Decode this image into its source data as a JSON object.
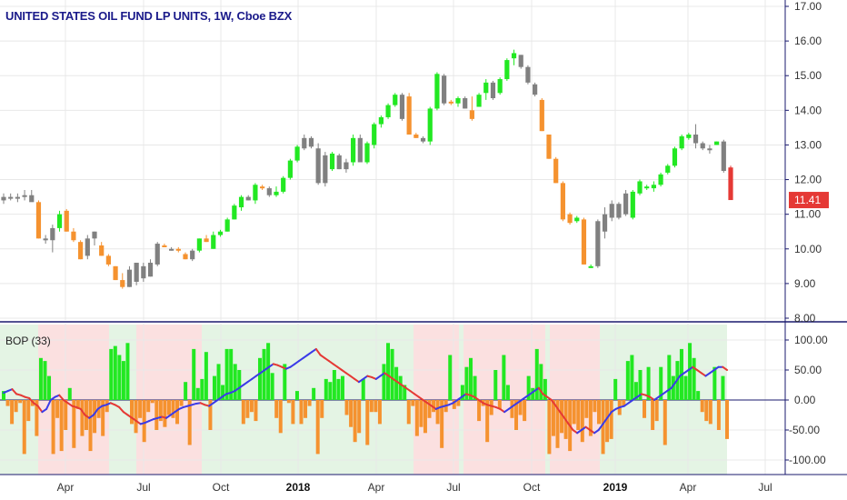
{
  "header": {
    "title": "UNITED STATES OIL FUND LP UNITS, 1W, Cboe BZX"
  },
  "indicator": {
    "label": "BOP (33)"
  },
  "chart_data": [
    {
      "type": "candlestick",
      "title": "UNITED STATES OIL FUND LP UNITS, 1W, Cboe BZX",
      "yticks": [
        "17.00",
        "16.00",
        "15.00",
        "14.00",
        "13.00",
        "12.00",
        "11.00",
        "10.00",
        "9.00",
        "8.00"
      ],
      "ylim": [
        8,
        17
      ],
      "last_price": "11.41",
      "last_price_color": "#e53935",
      "colors": {
        "up_strong": "#22e822",
        "down_strong": "#f5922f",
        "neutral": "#808080",
        "last": "#e53935"
      },
      "candles": [
        {
          "o": 11.4,
          "h": 11.6,
          "l": 11.3,
          "c": 11.5,
          "col": "gray"
        },
        {
          "o": 11.5,
          "h": 11.6,
          "l": 11.4,
          "c": 11.45,
          "col": "gray"
        },
        {
          "o": 11.45,
          "h": 11.6,
          "l": 11.35,
          "c": 11.5,
          "col": "gray"
        },
        {
          "o": 11.5,
          "h": 11.7,
          "l": 11.4,
          "c": 11.55,
          "col": "gray"
        },
        {
          "o": 11.55,
          "h": 11.7,
          "l": 11.4,
          "c": 11.35,
          "col": "gray"
        },
        {
          "o": 11.35,
          "h": 11.4,
          "l": 10.3,
          "c": 10.3,
          "col": "orange"
        },
        {
          "o": 10.3,
          "h": 10.4,
          "l": 10.15,
          "c": 10.25,
          "col": "gray"
        },
        {
          "o": 10.25,
          "h": 10.7,
          "l": 9.9,
          "c": 10.6,
          "col": "gray"
        },
        {
          "o": 10.6,
          "h": 11.1,
          "l": 10.5,
          "c": 11.0,
          "col": "green"
        },
        {
          "o": 11.1,
          "h": 11.15,
          "l": 10.5,
          "c": 10.5,
          "col": "orange"
        },
        {
          "o": 10.5,
          "h": 10.6,
          "l": 10.2,
          "c": 10.25,
          "col": "orange"
        },
        {
          "o": 10.2,
          "h": 10.25,
          "l": 9.7,
          "c": 9.7,
          "col": "orange"
        },
        {
          "o": 9.8,
          "h": 10.4,
          "l": 9.7,
          "c": 10.3,
          "col": "gray"
        },
        {
          "o": 10.3,
          "h": 10.5,
          "l": 10.1,
          "c": 10.5,
          "col": "gray"
        },
        {
          "o": 10.1,
          "h": 10.2,
          "l": 9.8,
          "c": 9.8,
          "col": "orange"
        },
        {
          "o": 9.8,
          "h": 9.85,
          "l": 9.5,
          "c": 9.55,
          "col": "orange"
        },
        {
          "o": 9.5,
          "h": 9.5,
          "l": 9.1,
          "c": 9.1,
          "col": "orange"
        },
        {
          "o": 9.1,
          "h": 9.3,
          "l": 8.85,
          "c": 8.9,
          "col": "orange"
        },
        {
          "o": 8.9,
          "h": 9.5,
          "l": 8.9,
          "c": 9.4,
          "col": "gray"
        },
        {
          "o": 9.05,
          "h": 9.6,
          "l": 8.95,
          "c": 9.6,
          "col": "gray"
        },
        {
          "o": 9.5,
          "h": 9.6,
          "l": 9.05,
          "c": 9.15,
          "col": "gray"
        },
        {
          "o": 9.2,
          "h": 9.7,
          "l": 9.2,
          "c": 9.6,
          "col": "gray"
        },
        {
          "o": 9.55,
          "h": 10.2,
          "l": 9.5,
          "c": 10.15,
          "col": "gray"
        },
        {
          "o": 10.1,
          "h": 10.15,
          "l": 10.05,
          "c": 10.1,
          "col": "orange"
        },
        {
          "o": 10.0,
          "h": 10.05,
          "l": 9.95,
          "c": 10.0,
          "col": "gray"
        },
        {
          "o": 10.0,
          "h": 10.05,
          "l": 9.9,
          "c": 9.95,
          "col": "orange"
        },
        {
          "o": 9.85,
          "h": 9.9,
          "l": 9.7,
          "c": 9.7,
          "col": "orange"
        },
        {
          "o": 9.7,
          "h": 10.0,
          "l": 9.65,
          "c": 9.95,
          "col": "gray"
        },
        {
          "o": 9.95,
          "h": 10.3,
          "l": 9.9,
          "c": 10.3,
          "col": "green"
        },
        {
          "o": 10.3,
          "h": 10.4,
          "l": 10.2,
          "c": 10.2,
          "col": "orange"
        },
        {
          "o": 10.0,
          "h": 10.5,
          "l": 10.0,
          "c": 10.4,
          "col": "green"
        },
        {
          "o": 10.4,
          "h": 10.55,
          "l": 10.35,
          "c": 10.5,
          "col": "green"
        },
        {
          "o": 10.5,
          "h": 10.9,
          "l": 10.5,
          "c": 10.85,
          "col": "green"
        },
        {
          "o": 10.85,
          "h": 11.3,
          "l": 10.85,
          "c": 11.25,
          "col": "green"
        },
        {
          "o": 11.2,
          "h": 11.55,
          "l": 11.1,
          "c": 11.5,
          "col": "green"
        },
        {
          "o": 11.5,
          "h": 11.55,
          "l": 11.4,
          "c": 11.4,
          "col": "gray"
        },
        {
          "o": 11.4,
          "h": 11.9,
          "l": 11.3,
          "c": 11.85,
          "col": "green"
        },
        {
          "o": 11.8,
          "h": 11.85,
          "l": 11.7,
          "c": 11.75,
          "col": "orange"
        },
        {
          "o": 11.75,
          "h": 11.8,
          "l": 11.5,
          "c": 11.55,
          "col": "gray"
        },
        {
          "o": 11.55,
          "h": 11.8,
          "l": 11.5,
          "c": 11.65,
          "col": "green"
        },
        {
          "o": 11.65,
          "h": 12.1,
          "l": 11.6,
          "c": 12.05,
          "col": "green"
        },
        {
          "o": 12.05,
          "h": 12.6,
          "l": 12.0,
          "c": 12.55,
          "col": "green"
        },
        {
          "o": 12.55,
          "h": 13.0,
          "l": 12.5,
          "c": 12.95,
          "col": "green"
        },
        {
          "o": 12.9,
          "h": 13.3,
          "l": 12.85,
          "c": 13.2,
          "col": "gray"
        },
        {
          "o": 13.2,
          "h": 13.25,
          "l": 12.9,
          "c": 12.95,
          "col": "gray"
        },
        {
          "o": 12.9,
          "h": 13.05,
          "l": 11.85,
          "c": 11.9,
          "col": "gray"
        },
        {
          "o": 11.9,
          "h": 12.8,
          "l": 11.8,
          "c": 12.7,
          "col": "gray"
        },
        {
          "o": 12.3,
          "h": 12.8,
          "l": 12.25,
          "c": 12.75,
          "col": "green"
        },
        {
          "o": 12.7,
          "h": 12.75,
          "l": 12.3,
          "c": 12.3,
          "col": "gray"
        },
        {
          "o": 12.3,
          "h": 12.6,
          "l": 12.2,
          "c": 12.5,
          "col": "gray"
        },
        {
          "o": 12.5,
          "h": 13.3,
          "l": 12.4,
          "c": 13.2,
          "col": "green"
        },
        {
          "o": 13.2,
          "h": 13.3,
          "l": 12.5,
          "c": 12.5,
          "col": "gray"
        },
        {
          "o": 12.5,
          "h": 13.1,
          "l": 12.45,
          "c": 13.05,
          "col": "green"
        },
        {
          "o": 13.0,
          "h": 13.65,
          "l": 12.9,
          "c": 13.6,
          "col": "green"
        },
        {
          "o": 13.6,
          "h": 13.85,
          "l": 13.5,
          "c": 13.8,
          "col": "green"
        },
        {
          "o": 13.8,
          "h": 14.2,
          "l": 13.75,
          "c": 14.15,
          "col": "green"
        },
        {
          "o": 14.15,
          "h": 14.5,
          "l": 14.1,
          "c": 14.45,
          "col": "green"
        },
        {
          "o": 14.45,
          "h": 14.5,
          "l": 13.7,
          "c": 13.75,
          "col": "gray"
        },
        {
          "o": 14.4,
          "h": 14.5,
          "l": 13.3,
          "c": 13.3,
          "col": "orange"
        },
        {
          "o": 13.3,
          "h": 13.35,
          "l": 13.2,
          "c": 13.2,
          "col": "orange"
        },
        {
          "o": 13.2,
          "h": 13.25,
          "l": 13.05,
          "c": 13.1,
          "col": "gray"
        },
        {
          "o": 13.1,
          "h": 14.1,
          "l": 13.0,
          "c": 14.05,
          "col": "green"
        },
        {
          "o": 14.05,
          "h": 15.1,
          "l": 14.0,
          "c": 15.05,
          "col": "green"
        },
        {
          "o": 15.0,
          "h": 15.05,
          "l": 14.15,
          "c": 14.2,
          "col": "gray"
        },
        {
          "o": 14.25,
          "h": 14.3,
          "l": 14.15,
          "c": 14.2,
          "col": "orange"
        },
        {
          "o": 14.2,
          "h": 14.4,
          "l": 14.1,
          "c": 14.35,
          "col": "green"
        },
        {
          "o": 14.35,
          "h": 14.4,
          "l": 14.05,
          "c": 14.05,
          "col": "gray"
        },
        {
          "o": 14.0,
          "h": 14.4,
          "l": 13.7,
          "c": 13.75,
          "col": "orange"
        },
        {
          "o": 14.1,
          "h": 14.5,
          "l": 14.1,
          "c": 14.45,
          "col": "green"
        },
        {
          "o": 14.5,
          "h": 14.9,
          "l": 14.3,
          "c": 14.8,
          "col": "green"
        },
        {
          "o": 14.8,
          "h": 14.85,
          "l": 14.3,
          "c": 14.35,
          "col": "gray"
        },
        {
          "o": 14.5,
          "h": 14.95,
          "l": 14.45,
          "c": 14.9,
          "col": "green"
        },
        {
          "o": 14.9,
          "h": 15.5,
          "l": 14.85,
          "c": 15.45,
          "col": "green"
        },
        {
          "o": 15.5,
          "h": 15.75,
          "l": 15.3,
          "c": 15.65,
          "col": "green"
        },
        {
          "o": 15.6,
          "h": 15.6,
          "l": 15.2,
          "c": 15.25,
          "col": "gray"
        },
        {
          "o": 15.25,
          "h": 15.3,
          "l": 14.75,
          "c": 14.8,
          "col": "gray"
        },
        {
          "o": 14.75,
          "h": 14.8,
          "l": 14.4,
          "c": 14.45,
          "col": "gray"
        },
        {
          "o": 14.3,
          "h": 14.35,
          "l": 13.4,
          "c": 13.4,
          "col": "orange"
        },
        {
          "o": 13.3,
          "h": 13.3,
          "l": 12.6,
          "c": 12.6,
          "col": "orange"
        },
        {
          "o": 12.6,
          "h": 12.65,
          "l": 11.9,
          "c": 11.9,
          "col": "orange"
        },
        {
          "o": 11.9,
          "h": 11.95,
          "l": 10.8,
          "c": 10.85,
          "col": "orange"
        },
        {
          "o": 11.0,
          "h": 11.05,
          "l": 10.7,
          "c": 10.75,
          "col": "orange"
        },
        {
          "o": 10.8,
          "h": 10.95,
          "l": 10.75,
          "c": 10.9,
          "col": "green"
        },
        {
          "o": 10.85,
          "h": 10.9,
          "l": 9.55,
          "c": 9.55,
          "col": "orange"
        },
        {
          "o": 9.5,
          "h": 9.55,
          "l": 9.45,
          "c": 9.5,
          "col": "green"
        },
        {
          "o": 9.5,
          "h": 10.85,
          "l": 9.45,
          "c": 10.8,
          "col": "gray"
        },
        {
          "o": 10.5,
          "h": 11.2,
          "l": 10.3,
          "c": 11.0,
          "col": "gray"
        },
        {
          "o": 10.9,
          "h": 11.4,
          "l": 10.8,
          "c": 11.3,
          "col": "gray"
        },
        {
          "o": 10.9,
          "h": 11.35,
          "l": 10.85,
          "c": 11.3,
          "col": "gray"
        },
        {
          "o": 11.0,
          "h": 11.7,
          "l": 10.95,
          "c": 11.6,
          "col": "gray"
        },
        {
          "o": 11.65,
          "h": 11.7,
          "l": 10.85,
          "c": 10.9,
          "col": "green"
        },
        {
          "o": 11.6,
          "h": 12.0,
          "l": 11.55,
          "c": 11.95,
          "col": "green"
        },
        {
          "o": 11.8,
          "h": 11.85,
          "l": 11.7,
          "c": 11.75,
          "col": "green"
        },
        {
          "o": 11.75,
          "h": 11.95,
          "l": 11.65,
          "c": 11.85,
          "col": "green"
        },
        {
          "o": 11.85,
          "h": 12.2,
          "l": 11.8,
          "c": 12.15,
          "col": "green"
        },
        {
          "o": 12.2,
          "h": 12.45,
          "l": 12.15,
          "c": 12.4,
          "col": "green"
        },
        {
          "o": 12.4,
          "h": 12.95,
          "l": 12.35,
          "c": 12.9,
          "col": "green"
        },
        {
          "o": 12.9,
          "h": 13.3,
          "l": 12.85,
          "c": 13.25,
          "col": "green"
        },
        {
          "o": 13.2,
          "h": 13.35,
          "l": 13.15,
          "c": 13.3,
          "col": "green"
        },
        {
          "o": 13.3,
          "h": 13.6,
          "l": 12.9,
          "c": 13.05,
          "col": "gray"
        },
        {
          "o": 13.05,
          "h": 13.1,
          "l": 12.85,
          "c": 12.9,
          "col": "gray"
        },
        {
          "o": 12.9,
          "h": 13.0,
          "l": 12.75,
          "c": 12.85,
          "col": "gray"
        },
        {
          "o": 13.0,
          "h": 13.1,
          "l": 13.0,
          "c": 13.1,
          "col": "green"
        },
        {
          "o": 13.1,
          "h": 13.15,
          "l": 12.2,
          "c": 12.25,
          "col": "gray"
        },
        {
          "o": 12.35,
          "h": 12.4,
          "l": 11.41,
          "c": 11.41,
          "col": "last"
        }
      ]
    },
    {
      "type": "bar",
      "title": "BOP (33)",
      "yticks": [
        "100.00",
        "50.00",
        "0.00",
        "-50.00",
        "-100.00"
      ],
      "ylim": [
        -110,
        110
      ],
      "xticks": [
        "Apr",
        "Jul",
        "Oct",
        "2018",
        "Apr",
        "Jul",
        "Oct",
        "2019",
        "Apr",
        "Jul"
      ],
      "bar_colors": {
        "positive": "#22e822",
        "negative": "#f5922f"
      },
      "line_colors": {
        "rising": "#3a3ae8",
        "falling": "#e53935"
      },
      "values": [
        15,
        -10,
        -40,
        -20,
        -5,
        -90,
        -35,
        -10,
        -60,
        70,
        65,
        40,
        -90,
        -30,
        -85,
        -50,
        20,
        -80,
        -15,
        -60,
        -50,
        -85,
        -55,
        -30,
        -60,
        -20,
        85,
        90,
        75,
        65,
        95,
        -40,
        -55,
        -30,
        -70,
        -20,
        -5,
        -50,
        -35,
        -45,
        -25,
        -30,
        -40,
        -10,
        30,
        -75,
        85,
        20,
        35,
        80,
        -50,
        40,
        60,
        25,
        85,
        85,
        60,
        50,
        -40,
        -30,
        -20,
        -35,
        70,
        85,
        95,
        45,
        -30,
        -55,
        60,
        -5,
        -40,
        15,
        -40,
        -30,
        -10,
        20,
        -90,
        -30,
        35,
        30,
        50,
        35,
        40,
        -25,
        -45,
        -70,
        -55,
        35,
        -75,
        -20,
        -20,
        -40,
        60,
        95,
        85,
        55,
        40,
        25,
        -40,
        -10,
        -60,
        -45,
        -55,
        -30,
        -20,
        -40,
        -80,
        -20,
        75,
        -15,
        -10,
        25,
        55,
        70,
        40,
        -35,
        -10,
        -70,
        -25,
        50,
        -15,
        75,
        25,
        -30,
        -50,
        -25,
        -35,
        40,
        20,
        85,
        60,
        35,
        -90,
        -60,
        -80,
        -55,
        -65,
        -85,
        -40,
        -50,
        -70,
        -30,
        -60,
        -20,
        -40,
        -90,
        -70,
        -65,
        35,
        -25,
        -10,
        65,
        75,
        30,
        50,
        -30,
        55,
        -50,
        -35,
        55,
        -75,
        75,
        40,
        65,
        85,
        40,
        95,
        70,
        15,
        -20,
        -35,
        -40,
        55,
        -50,
        40,
        -65
      ],
      "line": [
        12,
        15,
        18,
        10,
        8,
        5,
        3,
        -5,
        -10,
        -20,
        -15,
        0,
        5,
        8,
        0,
        -5,
        -10,
        -12,
        -15,
        -25,
        -30,
        -25,
        -15,
        -10,
        -8,
        -5,
        -8,
        -12,
        -20,
        -25,
        -30,
        -35,
        -40,
        -38,
        -35,
        -32,
        -30,
        -28,
        -30,
        -25,
        -20,
        -15,
        -12,
        -10,
        -8,
        -6,
        -5,
        -8,
        -10,
        -5,
        0,
        5,
        10,
        12,
        15,
        20,
        25,
        30,
        35,
        40,
        45,
        50,
        55,
        60,
        58,
        55,
        52,
        55,
        60,
        65,
        70,
        75,
        80,
        85,
        75,
        70,
        65,
        60,
        55,
        50,
        45,
        40,
        35,
        30,
        35,
        40,
        38,
        35,
        40,
        45,
        40,
        35,
        30,
        25,
        20,
        15,
        10,
        5,
        0,
        -5,
        -10,
        -15,
        -12,
        -10,
        -8,
        -5,
        0,
        5,
        10,
        8,
        5,
        0,
        -5,
        -8,
        -10,
        -12,
        -15,
        -20,
        -15,
        -10,
        -5,
        0,
        5,
        10,
        15,
        20,
        10,
        5,
        0,
        -10,
        -20,
        -30,
        -40,
        -50,
        -55,
        -50,
        -45,
        -50,
        -55,
        -50,
        -40,
        -30,
        -20,
        -15,
        -12,
        -10,
        -5,
        0,
        5,
        10,
        8,
        5,
        0,
        5,
        10,
        15,
        20,
        30,
        40,
        45,
        50,
        55,
        50,
        45,
        40,
        45,
        50,
        55,
        55,
        50
      ],
      "background_colors": {
        "positive": "#e4f4e4",
        "negative": "#fbe0e0"
      }
    }
  ],
  "xaxis": {
    "ticks": [
      "Apr",
      "Jul",
      "Oct",
      "2018",
      "Apr",
      "Jul",
      "Oct",
      "2019",
      "Apr",
      "Jul"
    ],
    "bold_ticks": [
      "2018",
      "2019"
    ]
  }
}
